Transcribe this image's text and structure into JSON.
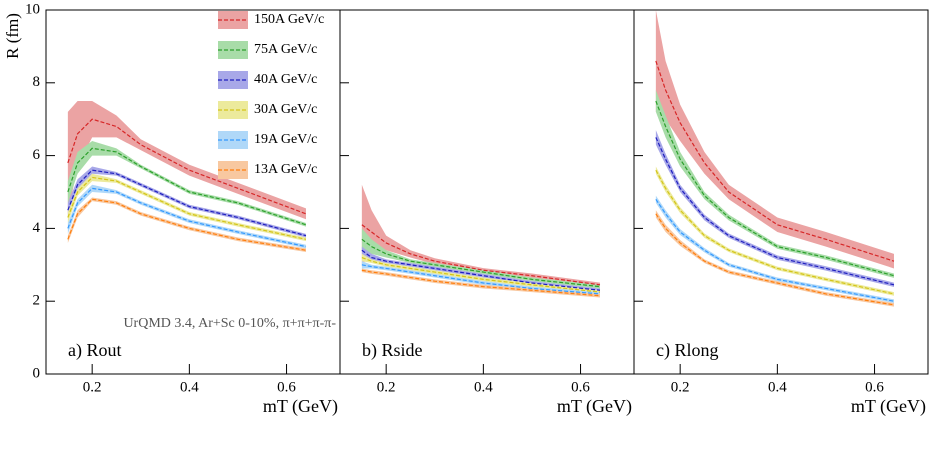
{
  "chart_data": [
    {
      "type": "line",
      "y_label": "R (fm)",
      "x_label": "mT (GeV)",
      "panel_label": "a) Rout",
      "annotation": "UrQMD 3.4, Ar+Sc 0-10%, π+π+π-π-",
      "legend": "top-right",
      "xlim": [
        0.105,
        0.71
      ],
      "xticks": [
        0.2,
        0.4,
        0.6
      ],
      "ylim": [
        0,
        10
      ],
      "yticks": [
        0,
        2,
        4,
        6,
        8,
        10
      ],
      "x": [
        0.15,
        0.17,
        0.2,
        0.25,
        0.3,
        0.4,
        0.5,
        0.64
      ],
      "series": [
        {
          "name": "150A GeV/c",
          "color": "#d62728",
          "band_color": "#eba3a3",
          "values": [
            5.8,
            6.6,
            7.0,
            6.8,
            6.3,
            5.6,
            5.1,
            4.4
          ],
          "errors": [
            1.4,
            0.9,
            0.5,
            0.3,
            0.15,
            0.15,
            0.15,
            0.15
          ]
        },
        {
          "name": "75A GeV/c",
          "color": "#2ca02c",
          "band_color": "#a8dca8",
          "values": [
            5.0,
            5.8,
            6.2,
            6.1,
            5.7,
            5.0,
            4.7,
            4.1
          ],
          "errors": [
            0.3,
            0.3,
            0.2,
            0.1,
            0.05,
            0.05,
            0.05,
            0.05
          ]
        },
        {
          "name": "40A GeV/c",
          "color": "#1f1fbf",
          "band_color": "#a8a8e8",
          "values": [
            4.5,
            5.2,
            5.6,
            5.5,
            5.2,
            4.6,
            4.3,
            3.8
          ],
          "errors": [
            0.2,
            0.15,
            0.1,
            0.05,
            0.05,
            0.05,
            0.05,
            0.05
          ]
        },
        {
          "name": "30A GeV/c",
          "color": "#d4c41a",
          "band_color": "#ecea9c",
          "values": [
            4.3,
            5.0,
            5.4,
            5.3,
            5.0,
            4.4,
            4.1,
            3.7
          ],
          "errors": [
            0.15,
            0.1,
            0.1,
            0.05,
            0.05,
            0.05,
            0.05,
            0.05
          ]
        },
        {
          "name": "19A GeV/c",
          "color": "#3399ff",
          "band_color": "#b0d8f8",
          "values": [
            4.0,
            4.7,
            5.1,
            5.0,
            4.7,
            4.2,
            3.9,
            3.5
          ],
          "errors": [
            0.15,
            0.1,
            0.1,
            0.05,
            0.05,
            0.05,
            0.05,
            0.05
          ]
        },
        {
          "name": "13A GeV/c",
          "color": "#ff7f0e",
          "band_color": "#f8c8a0",
          "values": [
            3.7,
            4.4,
            4.8,
            4.7,
            4.4,
            4.0,
            3.7,
            3.4
          ],
          "errors": [
            0.1,
            0.1,
            0.05,
            0.05,
            0.05,
            0.05,
            0.05,
            0.05
          ]
        }
      ]
    },
    {
      "type": "line",
      "x_label": "mT (GeV)",
      "panel_label": "b) Rside",
      "xlim": [
        0.105,
        0.71
      ],
      "xticks": [
        0.2,
        0.4,
        0.6
      ],
      "ylim": [
        0,
        10
      ],
      "x": [
        0.15,
        0.17,
        0.2,
        0.25,
        0.3,
        0.4,
        0.5,
        0.64
      ],
      "series": [
        {
          "color": "#d62728",
          "band_color": "#eba3a3",
          "values": [
            4.1,
            3.9,
            3.6,
            3.3,
            3.1,
            2.85,
            2.7,
            2.45
          ],
          "errors": [
            1.1,
            0.6,
            0.2,
            0.1,
            0.08,
            0.06,
            0.06,
            0.06
          ]
        },
        {
          "color": "#2ca02c",
          "band_color": "#a8dca8",
          "values": [
            3.7,
            3.5,
            3.3,
            3.1,
            3.0,
            2.8,
            2.6,
            2.4
          ],
          "errors": [
            0.3,
            0.2,
            0.1,
            0.05,
            0.05,
            0.05,
            0.05,
            0.05
          ]
        },
        {
          "color": "#1f1fbf",
          "band_color": "#a8a8e8",
          "values": [
            3.4,
            3.2,
            3.1,
            3.0,
            2.9,
            2.7,
            2.5,
            2.3
          ],
          "errors": [
            0.1,
            0.1,
            0.05,
            0.05,
            0.05,
            0.05,
            0.05,
            0.05
          ]
        },
        {
          "color": "#d4c41a",
          "band_color": "#ecea9c",
          "values": [
            3.2,
            3.1,
            3.0,
            2.9,
            2.8,
            2.6,
            2.45,
            2.25
          ],
          "errors": [
            0.1,
            0.05,
            0.05,
            0.05,
            0.05,
            0.05,
            0.05,
            0.05
          ]
        },
        {
          "color": "#3399ff",
          "band_color": "#b0d8f8",
          "values": [
            3.0,
            2.95,
            2.9,
            2.8,
            2.7,
            2.5,
            2.35,
            2.2
          ],
          "errors": [
            0.1,
            0.05,
            0.05,
            0.05,
            0.05,
            0.05,
            0.05,
            0.05
          ]
        },
        {
          "color": "#ff7f0e",
          "band_color": "#f8c8a0",
          "values": [
            2.85,
            2.8,
            2.75,
            2.65,
            2.55,
            2.4,
            2.3,
            2.15
          ],
          "errors": [
            0.05,
            0.05,
            0.05,
            0.05,
            0.05,
            0.05,
            0.05,
            0.05
          ]
        }
      ]
    },
    {
      "type": "line",
      "x_label": "mT (GeV)",
      "panel_label": "c) Rlong",
      "xlim": [
        0.105,
        0.71
      ],
      "xticks": [
        0.2,
        0.4,
        0.6
      ],
      "ylim": [
        0,
        10
      ],
      "x": [
        0.15,
        0.17,
        0.2,
        0.25,
        0.3,
        0.4,
        0.5,
        0.64
      ],
      "series": [
        {
          "color": "#d62728",
          "band_color": "#eba3a3",
          "values": [
            8.6,
            7.8,
            6.9,
            5.8,
            5.0,
            4.1,
            3.7,
            3.1
          ],
          "errors": [
            1.4,
            0.8,
            0.5,
            0.3,
            0.2,
            0.2,
            0.2,
            0.2
          ]
        },
        {
          "color": "#2ca02c",
          "band_color": "#a8dca8",
          "values": [
            7.5,
            6.8,
            5.9,
            4.9,
            4.3,
            3.5,
            3.2,
            2.7
          ],
          "errors": [
            0.3,
            0.3,
            0.2,
            0.1,
            0.08,
            0.06,
            0.06,
            0.06
          ]
        },
        {
          "color": "#1f1fbf",
          "band_color": "#a8a8e8",
          "values": [
            6.5,
            5.9,
            5.1,
            4.3,
            3.8,
            3.2,
            2.9,
            2.45
          ],
          "errors": [
            0.2,
            0.15,
            0.1,
            0.08,
            0.06,
            0.06,
            0.06,
            0.06
          ]
        },
        {
          "color": "#d4c41a",
          "band_color": "#ecea9c",
          "values": [
            5.6,
            5.1,
            4.5,
            3.8,
            3.4,
            2.9,
            2.6,
            2.2
          ],
          "errors": [
            0.1,
            0.1,
            0.08,
            0.06,
            0.05,
            0.05,
            0.05,
            0.05
          ]
        },
        {
          "color": "#3399ff",
          "band_color": "#b0d8f8",
          "values": [
            4.8,
            4.4,
            3.9,
            3.4,
            3.0,
            2.6,
            2.35,
            2.0
          ],
          "errors": [
            0.1,
            0.1,
            0.08,
            0.06,
            0.05,
            0.05,
            0.05,
            0.05
          ]
        },
        {
          "color": "#ff7f0e",
          "band_color": "#f8c8a0",
          "values": [
            4.4,
            4.0,
            3.6,
            3.1,
            2.8,
            2.5,
            2.2,
            1.9
          ],
          "errors": [
            0.1,
            0.1,
            0.08,
            0.05,
            0.05,
            0.05,
            0.05,
            0.05
          ]
        }
      ]
    }
  ]
}
